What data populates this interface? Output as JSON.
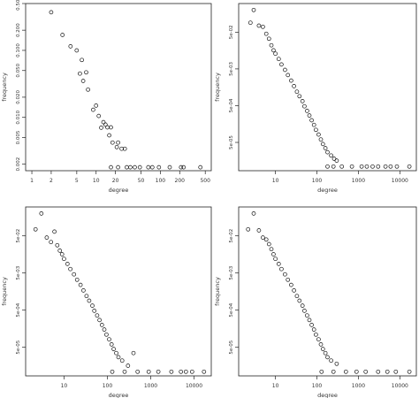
{
  "chart_data": [
    {
      "type": "scatter",
      "xlabel": "degree",
      "ylabel": "frequency",
      "x_log": true,
      "y_log": true,
      "xlim": [
        0.8,
        620
      ],
      "ylim": [
        0.0016,
        0.5
      ],
      "x_ticks": [
        {
          "v": 1,
          "label": "1"
        },
        {
          "v": 2,
          "label": "2"
        },
        {
          "v": 5,
          "label": "5"
        },
        {
          "v": 10,
          "label": "10"
        },
        {
          "v": 20,
          "label": "20"
        },
        {
          "v": 50,
          "label": "50"
        },
        {
          "v": 100,
          "label": "100"
        },
        {
          "v": 200,
          "label": "200"
        },
        {
          "v": 500,
          "label": "500"
        }
      ],
      "y_ticks": [
        {
          "v": 0.002,
          "label": "0.002"
        },
        {
          "v": 0.005,
          "label": "0.005"
        },
        {
          "v": 0.01,
          "label": "0.010"
        },
        {
          "v": 0.02,
          "label": "0.020"
        },
        {
          "v": 0.05,
          "label": "0.050"
        },
        {
          "v": 0.1,
          "label": "0.100"
        },
        {
          "v": 0.2,
          "label": "0.200"
        },
        {
          "v": 0.5,
          "label": "0.500"
        }
      ],
      "points": [
        [
          2,
          0.37
        ],
        [
          3,
          0.17
        ],
        [
          4,
          0.115
        ],
        [
          5,
          0.1
        ],
        [
          6,
          0.072
        ],
        [
          5.6,
          0.045
        ],
        [
          6.3,
          0.035
        ],
        [
          7,
          0.047
        ],
        [
          7.5,
          0.026
        ],
        [
          9,
          0.013
        ],
        [
          10,
          0.015
        ],
        [
          11,
          0.0105
        ],
        [
          13,
          0.0085
        ],
        [
          12,
          0.007
        ],
        [
          14,
          0.0078
        ],
        [
          15,
          0.0071
        ],
        [
          16,
          0.0054
        ],
        [
          17,
          0.0071
        ],
        [
          18,
          0.0042
        ],
        [
          21,
          0.0036
        ],
        [
          22,
          0.0042
        ],
        [
          25,
          0.0034
        ],
        [
          28,
          0.0034
        ],
        [
          17,
          0.0018
        ],
        [
          22,
          0.0018
        ],
        [
          30,
          0.0018
        ],
        [
          34,
          0.0018
        ],
        [
          40,
          0.0018
        ],
        [
          48,
          0.0018
        ],
        [
          65,
          0.0018
        ],
        [
          75,
          0.0018
        ],
        [
          95,
          0.0018
        ],
        [
          140,
          0.0018
        ],
        [
          210,
          0.0018
        ],
        [
          230,
          0.0018
        ],
        [
          420,
          0.0018
        ]
      ]
    },
    {
      "type": "scatter",
      "xlabel": "degree",
      "ylabel": "frequency",
      "x_log": true,
      "y_log": true,
      "xlim": [
        1.3,
        25000
      ],
      "ylim": [
        8.5e-06,
        0.3
      ],
      "x_ticks": [
        {
          "v": 10,
          "label": "10"
        },
        {
          "v": 100,
          "label": "100"
        },
        {
          "v": 1000,
          "label": "1000"
        },
        {
          "v": 10000,
          "label": "10000"
        }
      ],
      "y_ticks": [
        {
          "v": 5e-05,
          "label": "5e-05"
        },
        {
          "v": 0.0005,
          "label": "5e-04"
        },
        {
          "v": 0.005,
          "label": "5e-03"
        },
        {
          "v": 0.05,
          "label": "5e-02"
        }
      ],
      "points": [
        [
          2.5,
          0.09
        ],
        [
          3,
          0.2
        ],
        [
          4,
          0.075
        ],
        [
          5,
          0.07
        ],
        [
          6,
          0.045
        ],
        [
          7,
          0.033
        ],
        [
          8,
          0.022
        ],
        [
          9,
          0.016
        ],
        [
          10,
          0.013
        ],
        [
          12,
          0.0093
        ],
        [
          14,
          0.0066
        ],
        [
          17,
          0.0047
        ],
        [
          20,
          0.0034
        ],
        [
          24,
          0.0024
        ],
        [
          28,
          0.0017
        ],
        [
          33,
          0.0012
        ],
        [
          38,
          0.0009
        ],
        [
          45,
          0.00066
        ],
        [
          50,
          0.00048
        ],
        [
          58,
          0.00036
        ],
        [
          66,
          0.00027
        ],
        [
          75,
          0.0002
        ],
        [
          85,
          0.00015
        ],
        [
          95,
          0.00011
        ],
        [
          110,
          8.2e-05
        ],
        [
          125,
          6e-05
        ],
        [
          140,
          4.5e-05
        ],
        [
          160,
          3.5e-05
        ],
        [
          180,
          2.7e-05
        ],
        [
          220,
          2.2e-05
        ],
        [
          260,
          1.8e-05
        ],
        [
          300,
          1.6e-05
        ],
        [
          180,
          1.1e-05
        ],
        [
          250,
          1.1e-05
        ],
        [
          400,
          1.1e-05
        ],
        [
          700,
          1.1e-05
        ],
        [
          1200,
          1.1e-05
        ],
        [
          1600,
          1.1e-05
        ],
        [
          2200,
          1.1e-05
        ],
        [
          3000,
          1.1e-05
        ],
        [
          4500,
          1.1e-05
        ],
        [
          6000,
          1.1e-05
        ],
        [
          8500,
          1.1e-05
        ],
        [
          17000,
          1.1e-05
        ]
      ]
    },
    {
      "type": "scatter",
      "xlabel": "degree",
      "ylabel": "frequency",
      "x_log": true,
      "y_log": true,
      "xlim": [
        1.3,
        25000
      ],
      "ylim": [
        8.5e-06,
        0.3
      ],
      "x_ticks": [
        {
          "v": 10,
          "label": "10"
        },
        {
          "v": 100,
          "label": "100"
        },
        {
          "v": 1000,
          "label": "1000"
        },
        {
          "v": 10000,
          "label": "10000"
        }
      ],
      "y_ticks": [
        {
          "v": 5e-05,
          "label": "5e-05"
        },
        {
          "v": 0.0005,
          "label": "5e-04"
        },
        {
          "v": 0.005,
          "label": "5e-03"
        },
        {
          "v": 0.05,
          "label": "5e-02"
        }
      ],
      "points": [
        [
          2.2,
          0.075
        ],
        [
          3,
          0.2
        ],
        [
          4,
          0.045
        ],
        [
          5,
          0.034
        ],
        [
          6,
          0.065
        ],
        [
          7,
          0.028
        ],
        [
          8,
          0.02
        ],
        [
          9,
          0.016
        ],
        [
          10,
          0.012
        ],
        [
          12,
          0.0088
        ],
        [
          14,
          0.0064
        ],
        [
          17,
          0.0046
        ],
        [
          20,
          0.0033
        ],
        [
          24,
          0.0024
        ],
        [
          28,
          0.0017
        ],
        [
          33,
          0.0012
        ],
        [
          38,
          0.0009
        ],
        [
          45,
          0.00066
        ],
        [
          50,
          0.00048
        ],
        [
          58,
          0.00036
        ],
        [
          66,
          0.00027
        ],
        [
          75,
          0.0002
        ],
        [
          85,
          0.00015
        ],
        [
          95,
          0.00011
        ],
        [
          110,
          8.2e-05
        ],
        [
          125,
          6e-05
        ],
        [
          140,
          4.5e-05
        ],
        [
          160,
          3.5e-05
        ],
        [
          180,
          2.7e-05
        ],
        [
          220,
          2.2e-05
        ],
        [
          300,
          1.6e-05
        ],
        [
          400,
          3.5e-05
        ],
        [
          130,
          1.1e-05
        ],
        [
          250,
          1.1e-05
        ],
        [
          500,
          1.1e-05
        ],
        [
          900,
          1.1e-05
        ],
        [
          1500,
          1.1e-05
        ],
        [
          3000,
          1.1e-05
        ],
        [
          5000,
          1.1e-05
        ],
        [
          6500,
          1.1e-05
        ],
        [
          9000,
          1.1e-05
        ],
        [
          17000,
          1.1e-05
        ]
      ]
    },
    {
      "type": "scatter",
      "xlabel": "degree",
      "ylabel": "frequency",
      "x_log": true,
      "y_log": true,
      "xlim": [
        1.3,
        25000
      ],
      "ylim": [
        8.5e-06,
        0.3
      ],
      "x_ticks": [
        {
          "v": 10,
          "label": "10"
        },
        {
          "v": 100,
          "label": "100"
        },
        {
          "v": 1000,
          "label": "1000"
        },
        {
          "v": 10000,
          "label": "10000"
        }
      ],
      "y_ticks": [
        {
          "v": 5e-05,
          "label": "5e-05"
        },
        {
          "v": 0.0005,
          "label": "5e-04"
        },
        {
          "v": 0.005,
          "label": "5e-03"
        },
        {
          "v": 0.05,
          "label": "5e-02"
        }
      ],
      "points": [
        [
          2.2,
          0.075
        ],
        [
          3,
          0.2
        ],
        [
          4,
          0.07
        ],
        [
          5,
          0.045
        ],
        [
          6,
          0.04
        ],
        [
          7,
          0.03
        ],
        [
          8,
          0.022
        ],
        [
          9,
          0.016
        ],
        [
          10,
          0.012
        ],
        [
          12,
          0.0088
        ],
        [
          14,
          0.0064
        ],
        [
          17,
          0.0046
        ],
        [
          20,
          0.0033
        ],
        [
          24,
          0.0024
        ],
        [
          28,
          0.0017
        ],
        [
          33,
          0.0012
        ],
        [
          38,
          0.0009
        ],
        [
          45,
          0.00066
        ],
        [
          50,
          0.00048
        ],
        [
          58,
          0.00036
        ],
        [
          66,
          0.00027
        ],
        [
          75,
          0.0002
        ],
        [
          85,
          0.00015
        ],
        [
          95,
          0.00011
        ],
        [
          110,
          8.2e-05
        ],
        [
          125,
          6e-05
        ],
        [
          140,
          4.5e-05
        ],
        [
          160,
          3.5e-05
        ],
        [
          180,
          2.7e-05
        ],
        [
          220,
          2.2e-05
        ],
        [
          300,
          1.8e-05
        ],
        [
          130,
          1.1e-05
        ],
        [
          250,
          1.1e-05
        ],
        [
          500,
          1.1e-05
        ],
        [
          900,
          1.1e-05
        ],
        [
          1500,
          1.1e-05
        ],
        [
          3000,
          1.1e-05
        ],
        [
          5000,
          1.1e-05
        ],
        [
          8000,
          1.1e-05
        ],
        [
          17000,
          1.1e-05
        ]
      ]
    }
  ]
}
